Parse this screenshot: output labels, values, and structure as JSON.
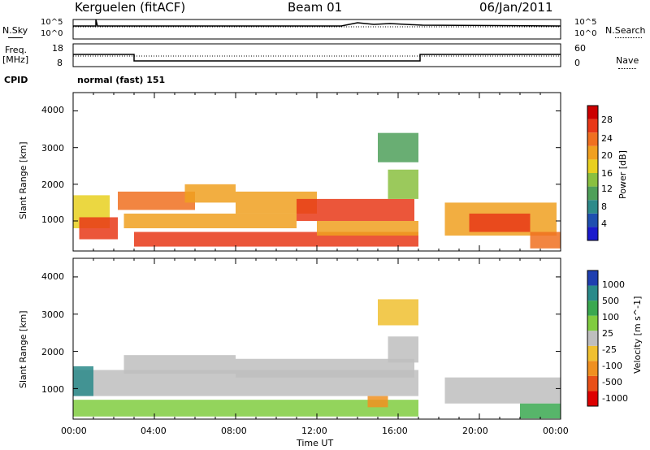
{
  "header": {
    "station": "Kerguelen (fitACF)",
    "beam": "Beam 01",
    "date": "06/Jan/2011"
  },
  "nsky_panel": {
    "label_left": "N.Sky",
    "label_right": "N.Search",
    "yticks_left": [
      "10^5",
      "10^0"
    ],
    "yticks_right": [
      "10^5",
      "10^0"
    ]
  },
  "freq_panel": {
    "label_left_1": "Freq.",
    "label_left_2": "[MHz]",
    "label_right": "Nave",
    "yticks_left": [
      "18",
      "8"
    ],
    "yticks_right": [
      "60",
      "0"
    ]
  },
  "cpid": {
    "label": "CPID",
    "value": "normal (fast) 151"
  },
  "xaxis": {
    "label": "Time UT",
    "ticks": [
      "00:00",
      "04:00",
      "08:00",
      "12:00",
      "16:00",
      "20:00",
      "00:00"
    ]
  },
  "chart_data": [
    {
      "type": "heatmap",
      "name": "power",
      "ylabel": "Slant Range [km]",
      "yticks": [
        "1000",
        "2000",
        "3000",
        "4000"
      ],
      "ylim": [
        180,
        4500
      ],
      "xlim_hours": [
        0,
        24
      ],
      "colorbar_label": "Power [dB]",
      "colorbar_ticks": [
        "4",
        "8",
        "12",
        "16",
        "20",
        "24",
        "28"
      ],
      "colors": [
        "#1a1acc",
        "#1f4fb0",
        "#2e8a8a",
        "#4fa05a",
        "#8ac040",
        "#e8d020",
        "#f0a020",
        "#f07020",
        "#e83818",
        "#cc0000"
      ],
      "bands": [
        {
          "t0": 0.0,
          "t1": 1.8,
          "r0": 800,
          "r1": 1700,
          "level": 5
        },
        {
          "t0": 0.3,
          "t1": 2.2,
          "r0": 500,
          "r1": 1100,
          "level": 8
        },
        {
          "t0": 2.2,
          "t1": 6.0,
          "r0": 1300,
          "r1": 1800,
          "level": 7
        },
        {
          "t0": 5.5,
          "t1": 8.0,
          "r0": 1500,
          "r1": 2000,
          "level": 6
        },
        {
          "t0": 2.5,
          "t1": 11.0,
          "r0": 800,
          "r1": 1200,
          "level": 6
        },
        {
          "t0": 3.0,
          "t1": 17.0,
          "r0": 300,
          "r1": 700,
          "level": 8
        },
        {
          "t0": 8.0,
          "t1": 12.0,
          "r0": 1200,
          "r1": 1800,
          "level": 6
        },
        {
          "t0": 11.0,
          "t1": 16.8,
          "r0": 1000,
          "r1": 1600,
          "level": 8
        },
        {
          "t0": 12.0,
          "t1": 17.0,
          "r0": 600,
          "r1": 1000,
          "level": 6
        },
        {
          "t0": 15.5,
          "t1": 17.0,
          "r0": 1600,
          "r1": 2400,
          "level": 4
        },
        {
          "t0": 15.0,
          "t1": 17.0,
          "r0": 2600,
          "r1": 3400,
          "level": 3
        },
        {
          "t0": 18.3,
          "t1": 23.8,
          "r0": 600,
          "r1": 1500,
          "level": 6
        },
        {
          "t0": 19.5,
          "t1": 22.5,
          "r0": 700,
          "r1": 1200,
          "level": 8
        },
        {
          "t0": 22.5,
          "t1": 24.0,
          "r0": 250,
          "r1": 700,
          "level": 7
        }
      ]
    },
    {
      "type": "heatmap",
      "name": "velocity",
      "ylabel": "Slant Range [km]",
      "yticks": [
        "1000",
        "2000",
        "3000",
        "4000"
      ],
      "ylim": [
        180,
        4500
      ],
      "xlim_hours": [
        0,
        24
      ],
      "colorbar_label": "Velocity [m s^-1]",
      "colorbar_ticks": [
        "1000",
        "500",
        "100",
        "25",
        "-25",
        "-100",
        "-500",
        "-1000"
      ],
      "colors": [
        "#1f3fb0",
        "#2a8a8a",
        "#3aa850",
        "#80cc40",
        "#bebebe",
        "#f0c030",
        "#f09020",
        "#e85018",
        "#dd0000"
      ],
      "bands": [
        {
          "t0": 0.0,
          "t1": 17.0,
          "r0": 800,
          "r1": 1500,
          "level": 4
        },
        {
          "t0": 2.5,
          "t1": 8.0,
          "r0": 1400,
          "r1": 1900,
          "level": 4
        },
        {
          "t0": 8.0,
          "t1": 16.8,
          "r0": 1300,
          "r1": 1800,
          "level": 4
        },
        {
          "t0": 0.0,
          "t1": 1.0,
          "r0": 800,
          "r1": 1600,
          "level": 1
        },
        {
          "t0": 0.0,
          "t1": 17.0,
          "r0": 250,
          "r1": 700,
          "level": 3
        },
        {
          "t0": 15.5,
          "t1": 17.0,
          "r0": 1700,
          "r1": 2400,
          "level": 4
        },
        {
          "t0": 15.0,
          "t1": 17.0,
          "r0": 2700,
          "r1": 3400,
          "level": 5
        },
        {
          "t0": 18.3,
          "t1": 24.0,
          "r0": 600,
          "r1": 1300,
          "level": 4
        },
        {
          "t0": 22.0,
          "t1": 24.0,
          "r0": 200,
          "r1": 600,
          "level": 2
        },
        {
          "t0": 14.5,
          "t1": 15.5,
          "r0": 500,
          "r1": 800,
          "level": 6
        }
      ]
    }
  ]
}
